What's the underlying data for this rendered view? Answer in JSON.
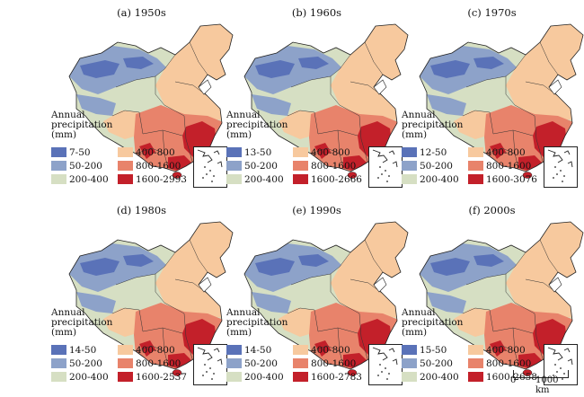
{
  "legend": {
    "title_lines": [
      "Annual",
      "precipitation",
      "(mm)"
    ],
    "colors": [
      "#5a72b8",
      "#8da2c9",
      "#d6dfc3",
      "#f7c99e",
      "#e8836b",
      "#c3202a"
    ]
  },
  "panels": [
    {
      "title": "(a) 1950s",
      "classes": [
        "7-50",
        "50-200",
        "200-400",
        "400-800",
        "800-1600",
        "1600-2993"
      ]
    },
    {
      "title": "(b) 1960s",
      "classes": [
        "13-50",
        "50-200",
        "200-400",
        "400-800",
        "800-1600",
        "1600-2666"
      ]
    },
    {
      "title": "(c) 1970s",
      "classes": [
        "12-50",
        "50-200",
        "200-400",
        "400-800",
        "800-1600",
        "1600-3076"
      ]
    },
    {
      "title": "(d) 1980s",
      "classes": [
        "14-50",
        "50-200",
        "200-400",
        "400-800",
        "800-1600",
        "1600-2537"
      ]
    },
    {
      "title": "(e) 1990s",
      "classes": [
        "14-50",
        "50-200",
        "200-400",
        "400-800",
        "800-1600",
        "1600-2783"
      ]
    },
    {
      "title": "(f) 2000s",
      "classes": [
        "15-50",
        "50-200",
        "200-400",
        "400-800",
        "800-1600",
        "1600-2658"
      ]
    }
  ],
  "scale": {
    "zero": "0",
    "distance": "1000 km"
  }
}
